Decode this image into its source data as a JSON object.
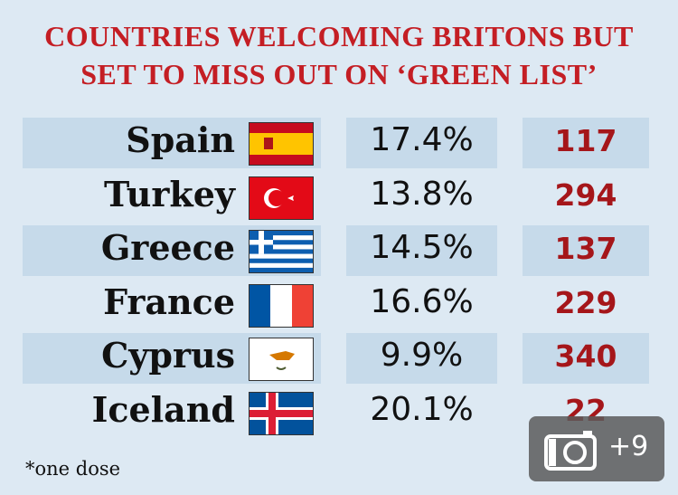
{
  "header": {
    "title_line1": "COUNTRIES WELCOMING BRITONS BUT",
    "title_line2": "SET TO MISS OUT ON ‘GREEN LIST’"
  },
  "table": {
    "rows": [
      [
        "Spain",
        "17.4%",
        117
      ],
      [
        "Turkey",
        "13.8%",
        294
      ],
      [
        "Greece",
        "14.5%",
        137
      ],
      [
        "France",
        "16.6%",
        229
      ],
      [
        "Cyprus",
        "9.9%",
        340
      ],
      [
        "Iceland",
        "20.1%",
        22
      ]
    ]
  },
  "footnote": "*one dose",
  "overlay": {
    "more_count": "+9"
  }
}
